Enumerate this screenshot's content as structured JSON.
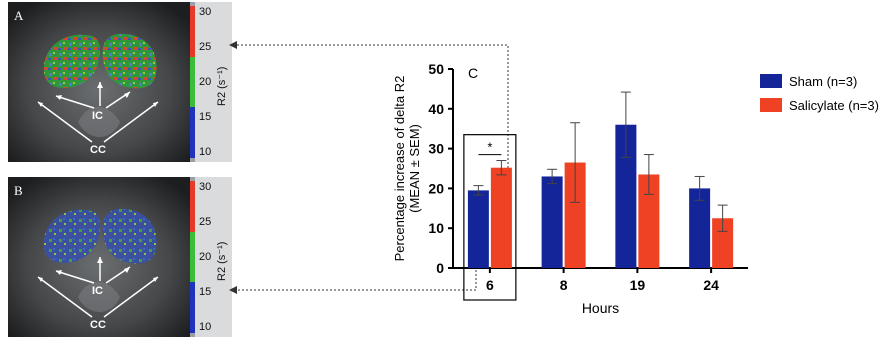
{
  "panels": [
    {
      "letter": "A",
      "ic_label": "IC",
      "cc_label": "CC",
      "colorbar_ticks": [
        "30",
        "25",
        "20",
        "15",
        "10"
      ],
      "colorbar_unit": "R2 (s⁻¹)"
    },
    {
      "letter": "B",
      "ic_label": "IC",
      "cc_label": "CC",
      "colorbar_ticks": [
        "30",
        "25",
        "20",
        "15",
        "10"
      ],
      "colorbar_unit": "R2 (s⁻¹)"
    }
  ],
  "colors": {
    "sham": "#14259a",
    "salicylate": "#ef4123",
    "bar_low": "#2233bb",
    "bar_mid": "#3dbb3a",
    "bar_high": "#e5392a"
  },
  "chart_data": {
    "type": "bar",
    "panel_label": "C",
    "categories": [
      "6",
      "8",
      "19",
      "24"
    ],
    "series": [
      {
        "name": "Sham (n=3)",
        "values": [
          19.5,
          23,
          36,
          20
        ],
        "errors": [
          1.2,
          1.8,
          8.2,
          3
        ]
      },
      {
        "name": "Salicylate (n=3)",
        "values": [
          25.2,
          26.5,
          23.5,
          12.5
        ],
        "errors": [
          1.8,
          10,
          5,
          3.3
        ]
      }
    ],
    "xlabel": "Hours",
    "ylabel": [
      "Percentage increase of delta R2",
      "(MEAN ± SEM)"
    ],
    "ylim": [
      0,
      50
    ],
    "yticks": [
      "0",
      "10",
      "20",
      "30",
      "40",
      "50"
    ],
    "significance": "*",
    "legend_position": "right",
    "grid": false
  }
}
